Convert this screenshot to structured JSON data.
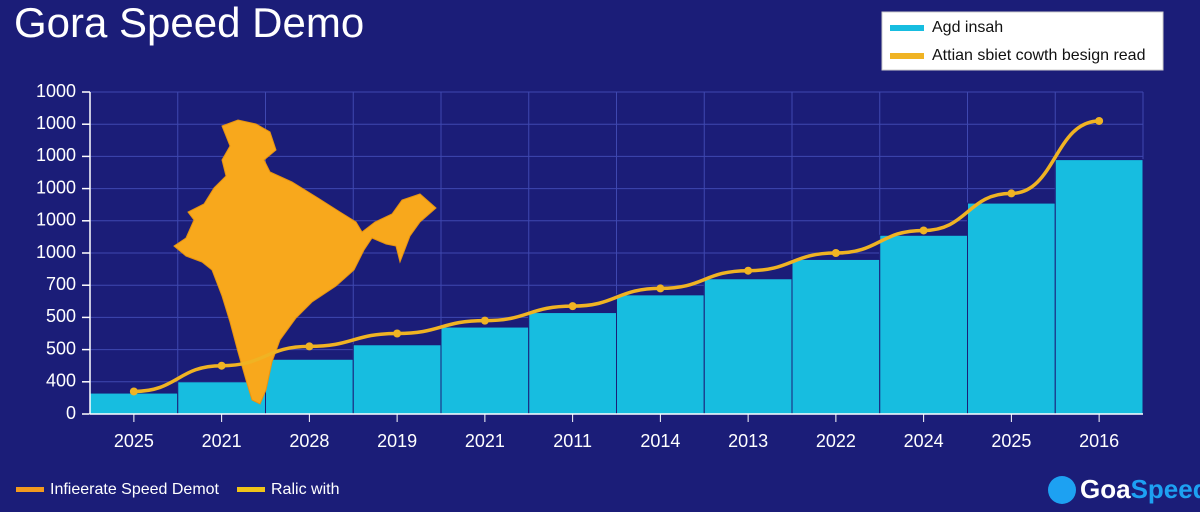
{
  "chart_data": {
    "type": "bar-line",
    "title": "Gora Speed Demo",
    "categories": [
      "2025",
      "2021",
      "2028",
      "2019",
      "2021",
      "2011",
      "2014",
      "2013",
      "2022",
      "2024",
      "2025",
      "2016"
    ],
    "series": [
      {
        "name": "Agd insah",
        "type": "bar",
        "color": "#17bde0",
        "values": [
          0.65,
          1.0,
          1.7,
          2.15,
          2.7,
          3.15,
          3.7,
          4.2,
          4.8,
          5.55,
          6.55,
          7.9
        ]
      },
      {
        "name": "Attian sbiet cowth besign read",
        "type": "line",
        "color": "#f0b323",
        "values": [
          0.7,
          1.5,
          2.1,
          2.5,
          2.9,
          3.35,
          3.9,
          4.45,
          5.0,
          5.7,
          6.85,
          9.1
        ]
      }
    ],
    "ylim": [
      0,
      10
    ],
    "yticks": [
      0,
      {
        "value": 1,
        "label": "400"
      },
      {
        "value": 2,
        "label": "500"
      },
      {
        "value": 3,
        "label": "500"
      },
      {
        "value": 4,
        "label": "700"
      },
      {
        "value": 5,
        "label": "1000"
      },
      {
        "value": 6,
        "label": "1000"
      },
      {
        "value": 7,
        "label": "1000"
      },
      {
        "value": 8,
        "label": "1000"
      },
      {
        "value": 9,
        "label": "1000"
      },
      {
        "value": 10,
        "label": "1000"
      }
    ],
    "grid": true,
    "legend": "top-right",
    "footer_legend": [
      {
        "name": "Infieerate Speed Demot",
        "color": "#f39a1e"
      },
      {
        "name": "Ralic with",
        "color": "#f0c419"
      }
    ],
    "logo": [
      "Goa",
      "Speed"
    ]
  }
}
